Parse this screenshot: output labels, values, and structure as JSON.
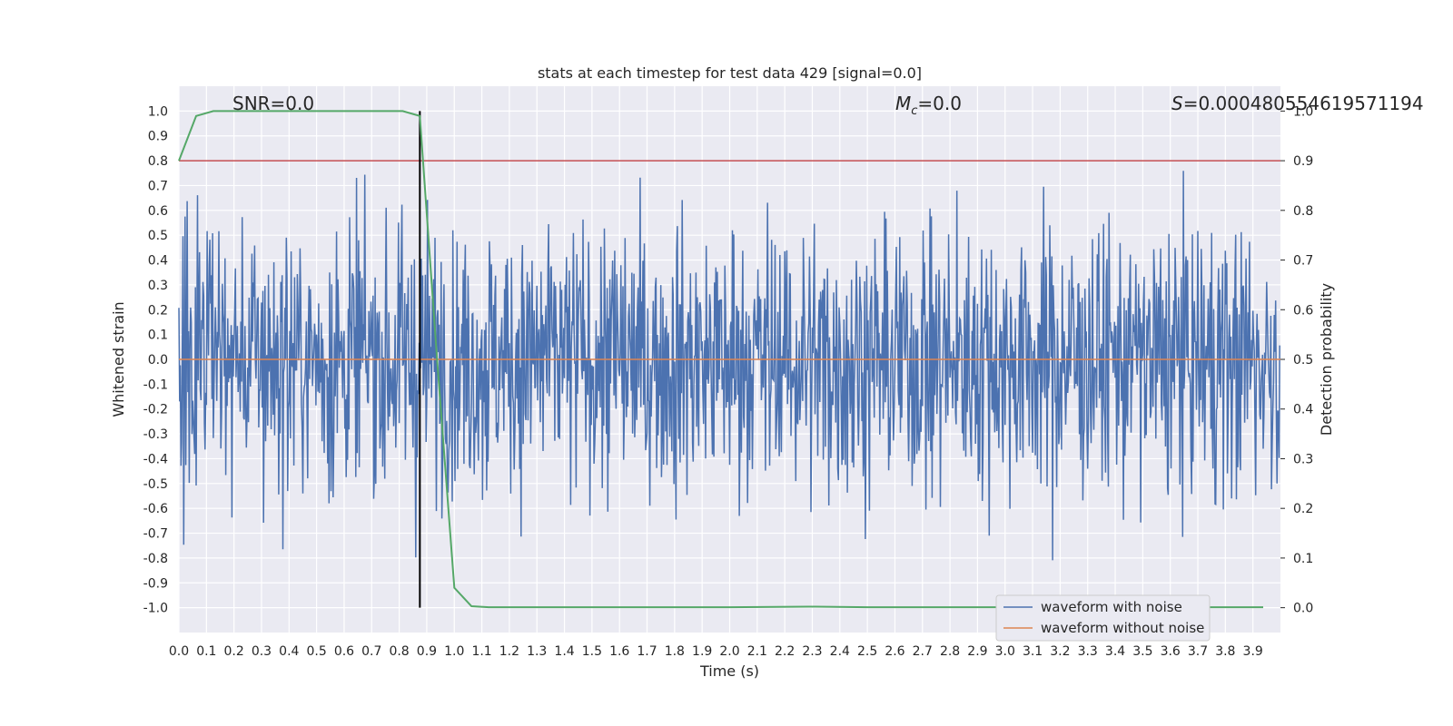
{
  "chart_data": {
    "type": "line",
    "title": "stats at each timestep for test data 429 [signal=0.0]",
    "xlabel": "Time (s)",
    "ylabel": "Whitened strain",
    "ylabel_right": "Detection probability",
    "xlim": [
      0.0,
      4.0
    ],
    "ylim": [
      -1.1,
      1.1
    ],
    "ylim_right": [
      -0.05,
      1.05
    ],
    "x_ticks": [
      "0.0",
      "0.1",
      "0.2",
      "0.3",
      "0.4",
      "0.5",
      "0.6",
      "0.7",
      "0.8",
      "0.9",
      "1.0",
      "1.1",
      "1.2",
      "1.3",
      "1.4",
      "1.5",
      "1.6",
      "1.7",
      "1.8",
      "1.9",
      "2.0",
      "2.1",
      "2.2",
      "2.3",
      "2.4",
      "2.5",
      "2.6",
      "2.7",
      "2.8",
      "2.9",
      "3.0",
      "3.1",
      "3.2",
      "3.3",
      "3.4",
      "3.5",
      "3.6",
      "3.7",
      "3.8",
      "3.9"
    ],
    "y_ticks": [
      "-1.0",
      "-0.9",
      "-0.8",
      "-0.7",
      "-0.6",
      "-0.5",
      "-0.4",
      "-0.3",
      "-0.2",
      "-0.1",
      "0.0",
      "0.1",
      "0.2",
      "0.3",
      "0.4",
      "0.5",
      "0.6",
      "0.7",
      "0.8",
      "0.9",
      "1.0"
    ],
    "y_ticks_right": [
      "0.0",
      "0.1",
      "0.2",
      "0.3",
      "0.4",
      "0.5",
      "0.6",
      "0.7",
      "0.8",
      "0.9",
      "1.0"
    ],
    "annotations": {
      "snr": "SNR=0.0",
      "mc_symbol": "M",
      "mc_sub": "c",
      "mc_value": "=0.0",
      "s_symbol": "S",
      "s_value": "=0.000480554619571194"
    },
    "threshold": {
      "value": 0.9,
      "color": "#c44e52"
    },
    "vline": {
      "x": 0.875,
      "color": "#000000"
    },
    "series": [
      {
        "name": "waveform with noise",
        "color": "#4c72b0",
        "kind": "noise",
        "amplitude_range": [
          -0.97,
          1.0
        ],
        "samples": 1600
      },
      {
        "name": "waveform without noise",
        "color": "#dd8452",
        "kind": "flat",
        "value": 0.0
      },
      {
        "name": "detection probability",
        "color": "#55a868",
        "axis": "right",
        "x": [
          0.0,
          0.0625,
          0.125,
          0.1875,
          0.25,
          0.3125,
          0.375,
          0.4375,
          0.5,
          0.5625,
          0.625,
          0.6875,
          0.75,
          0.8125,
          0.875,
          0.9375,
          1.0,
          1.0625,
          1.125,
          1.1875,
          1.25,
          1.5,
          2.0,
          2.3125,
          2.5,
          3.0,
          3.5,
          3.9375
        ],
        "y": [
          0.9,
          0.99,
          1.0,
          1.0,
          1.0,
          1.0,
          1.0,
          1.0,
          1.0,
          1.0,
          1.0,
          1.0,
          1.0,
          1.0,
          0.99,
          0.5,
          0.04,
          0.003,
          0.001,
          0.001,
          0.001,
          0.001,
          0.001,
          0.002,
          0.001,
          0.001,
          0.001,
          0.001
        ]
      }
    ],
    "legend": {
      "placement": "bottom-right",
      "entries": [
        "waveform with noise",
        "waveform without noise"
      ]
    }
  }
}
